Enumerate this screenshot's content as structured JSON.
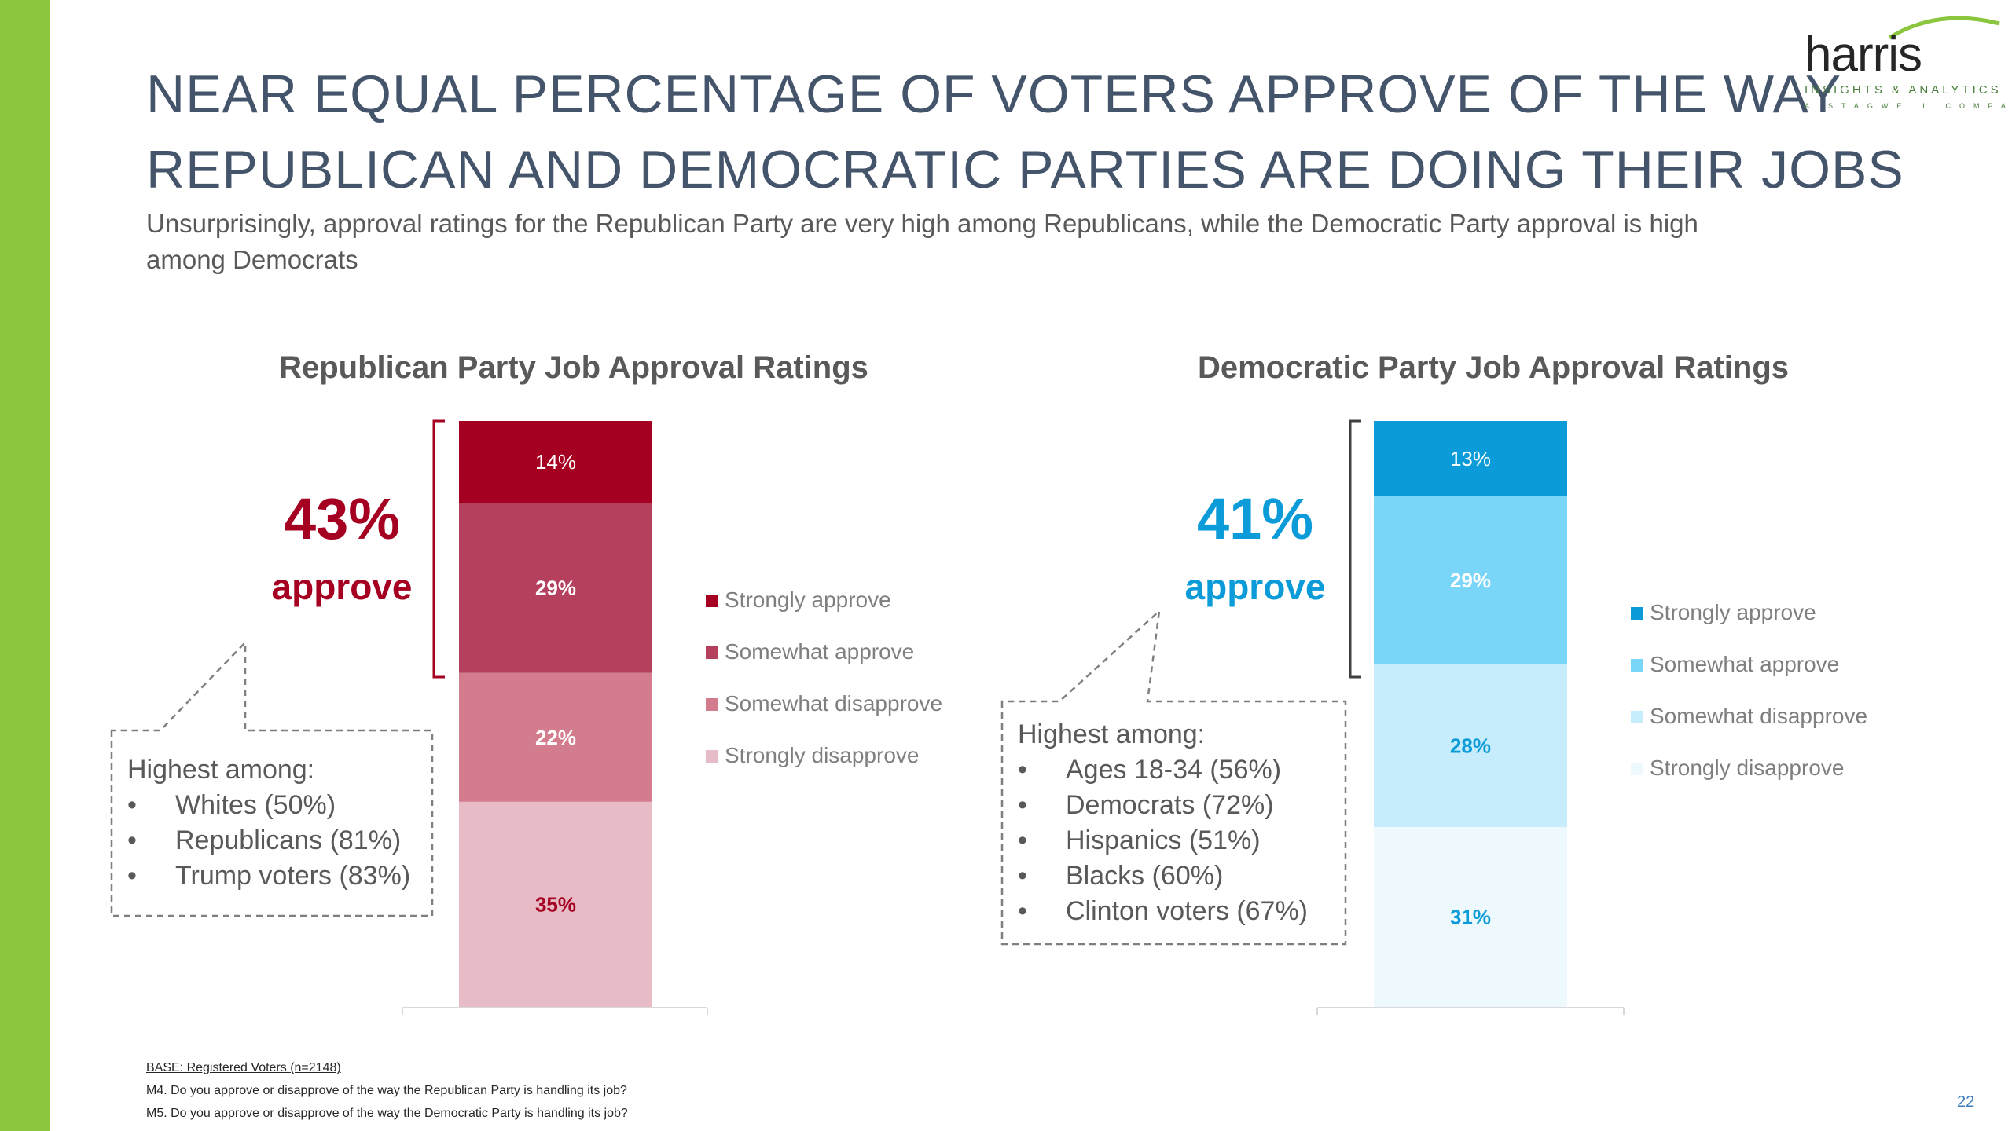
{
  "slide": {
    "title_line1": "NEAR EQUAL PERCENTAGE OF VOTERS APPROVE OF THE WAY",
    "title_line2": "REPUBLICAN AND DEMOCRATIC PARTIES ARE DOING THEIR JOBS",
    "subtitle": "Unsurprisingly, approval ratings for the Republican Party are very high among Republicans, while the Democratic Party approval is high among Democrats",
    "logo": {
      "word": "harris",
      "tagline": "INSIGHTS & ANALYTICS",
      "tagline2": "A STAGWELL COMPANY"
    },
    "footer": {
      "base": "BASE: Registered Voters (n=2148)",
      "q1": "M4. Do you approve or disapprove of the way the Republican Party is handling its job?",
      "q2": "M5. Do you approve or disapprove of the way the Democratic Party is handling its job?"
    },
    "page_number": "22",
    "accent_color": "#8cc63f"
  },
  "callouts": {
    "republican": {
      "approve_pct": "43%",
      "approve_word": "approve",
      "heading": "Highest among:",
      "items": [
        "Whites (50%)",
        "Republicans (81%)",
        "Trump voters (83%)"
      ]
    },
    "democratic": {
      "approve_pct": "41%",
      "approve_word": "approve",
      "heading": "Highest among:",
      "items": [
        "Ages 18-34 (56%)",
        "Democrats (72%)",
        "Hispanics (51%)",
        "Blacks (60%)",
        "Clinton voters (67%)"
      ]
    }
  },
  "chart_data": [
    {
      "type": "bar",
      "stacked": true,
      "title": "Republican Party Job Approval Ratings",
      "series": [
        {
          "name": "Strongly approve",
          "values": [
            14
          ],
          "label": "14%",
          "color": "#a50021",
          "label_color": "#ffffff"
        },
        {
          "name": "Somewhat approve",
          "values": [
            29
          ],
          "label": "29%",
          "color": "#b5405e",
          "label_color": "#ffffff"
        },
        {
          "name": "Somewhat disapprove",
          "values": [
            22
          ],
          "label": "22%",
          "color": "#d27c8e",
          "label_color": "#ffffff"
        },
        {
          "name": "Strongly disapprove",
          "values": [
            35
          ],
          "label": "35%",
          "color": "#e8bcc6",
          "label_color": "#a50021"
        }
      ],
      "legend": [
        "Strongly approve",
        "Somewhat approve",
        "Somewhat disapprove",
        "Strongly disapprove"
      ],
      "legend_position": "right"
    },
    {
      "type": "bar",
      "stacked": true,
      "title": "Democratic Party Job Approval Ratings",
      "series": [
        {
          "name": "Strongly approve",
          "values": [
            13
          ],
          "label": "13%",
          "color": "#0a9bd8",
          "label_color": "#ffffff"
        },
        {
          "name": "Somewhat approve",
          "values": [
            29
          ],
          "label": "29%",
          "color": "#7ad6f8",
          "label_color": "#ffffff"
        },
        {
          "name": "Somewhat disapprove",
          "values": [
            28
          ],
          "label": "28%",
          "color": "#c7edfc",
          "label_color": "#0a9bd8"
        },
        {
          "name": "Strongly disapprove",
          "values": [
            31
          ],
          "label": "31%",
          "color": "#eef9fe",
          "label_color": "#0a9bd8"
        }
      ],
      "legend": [
        "Strongly approve",
        "Somewhat approve",
        "Somewhat disapprove",
        "Strongly disapprove"
      ],
      "legend_position": "right"
    }
  ]
}
